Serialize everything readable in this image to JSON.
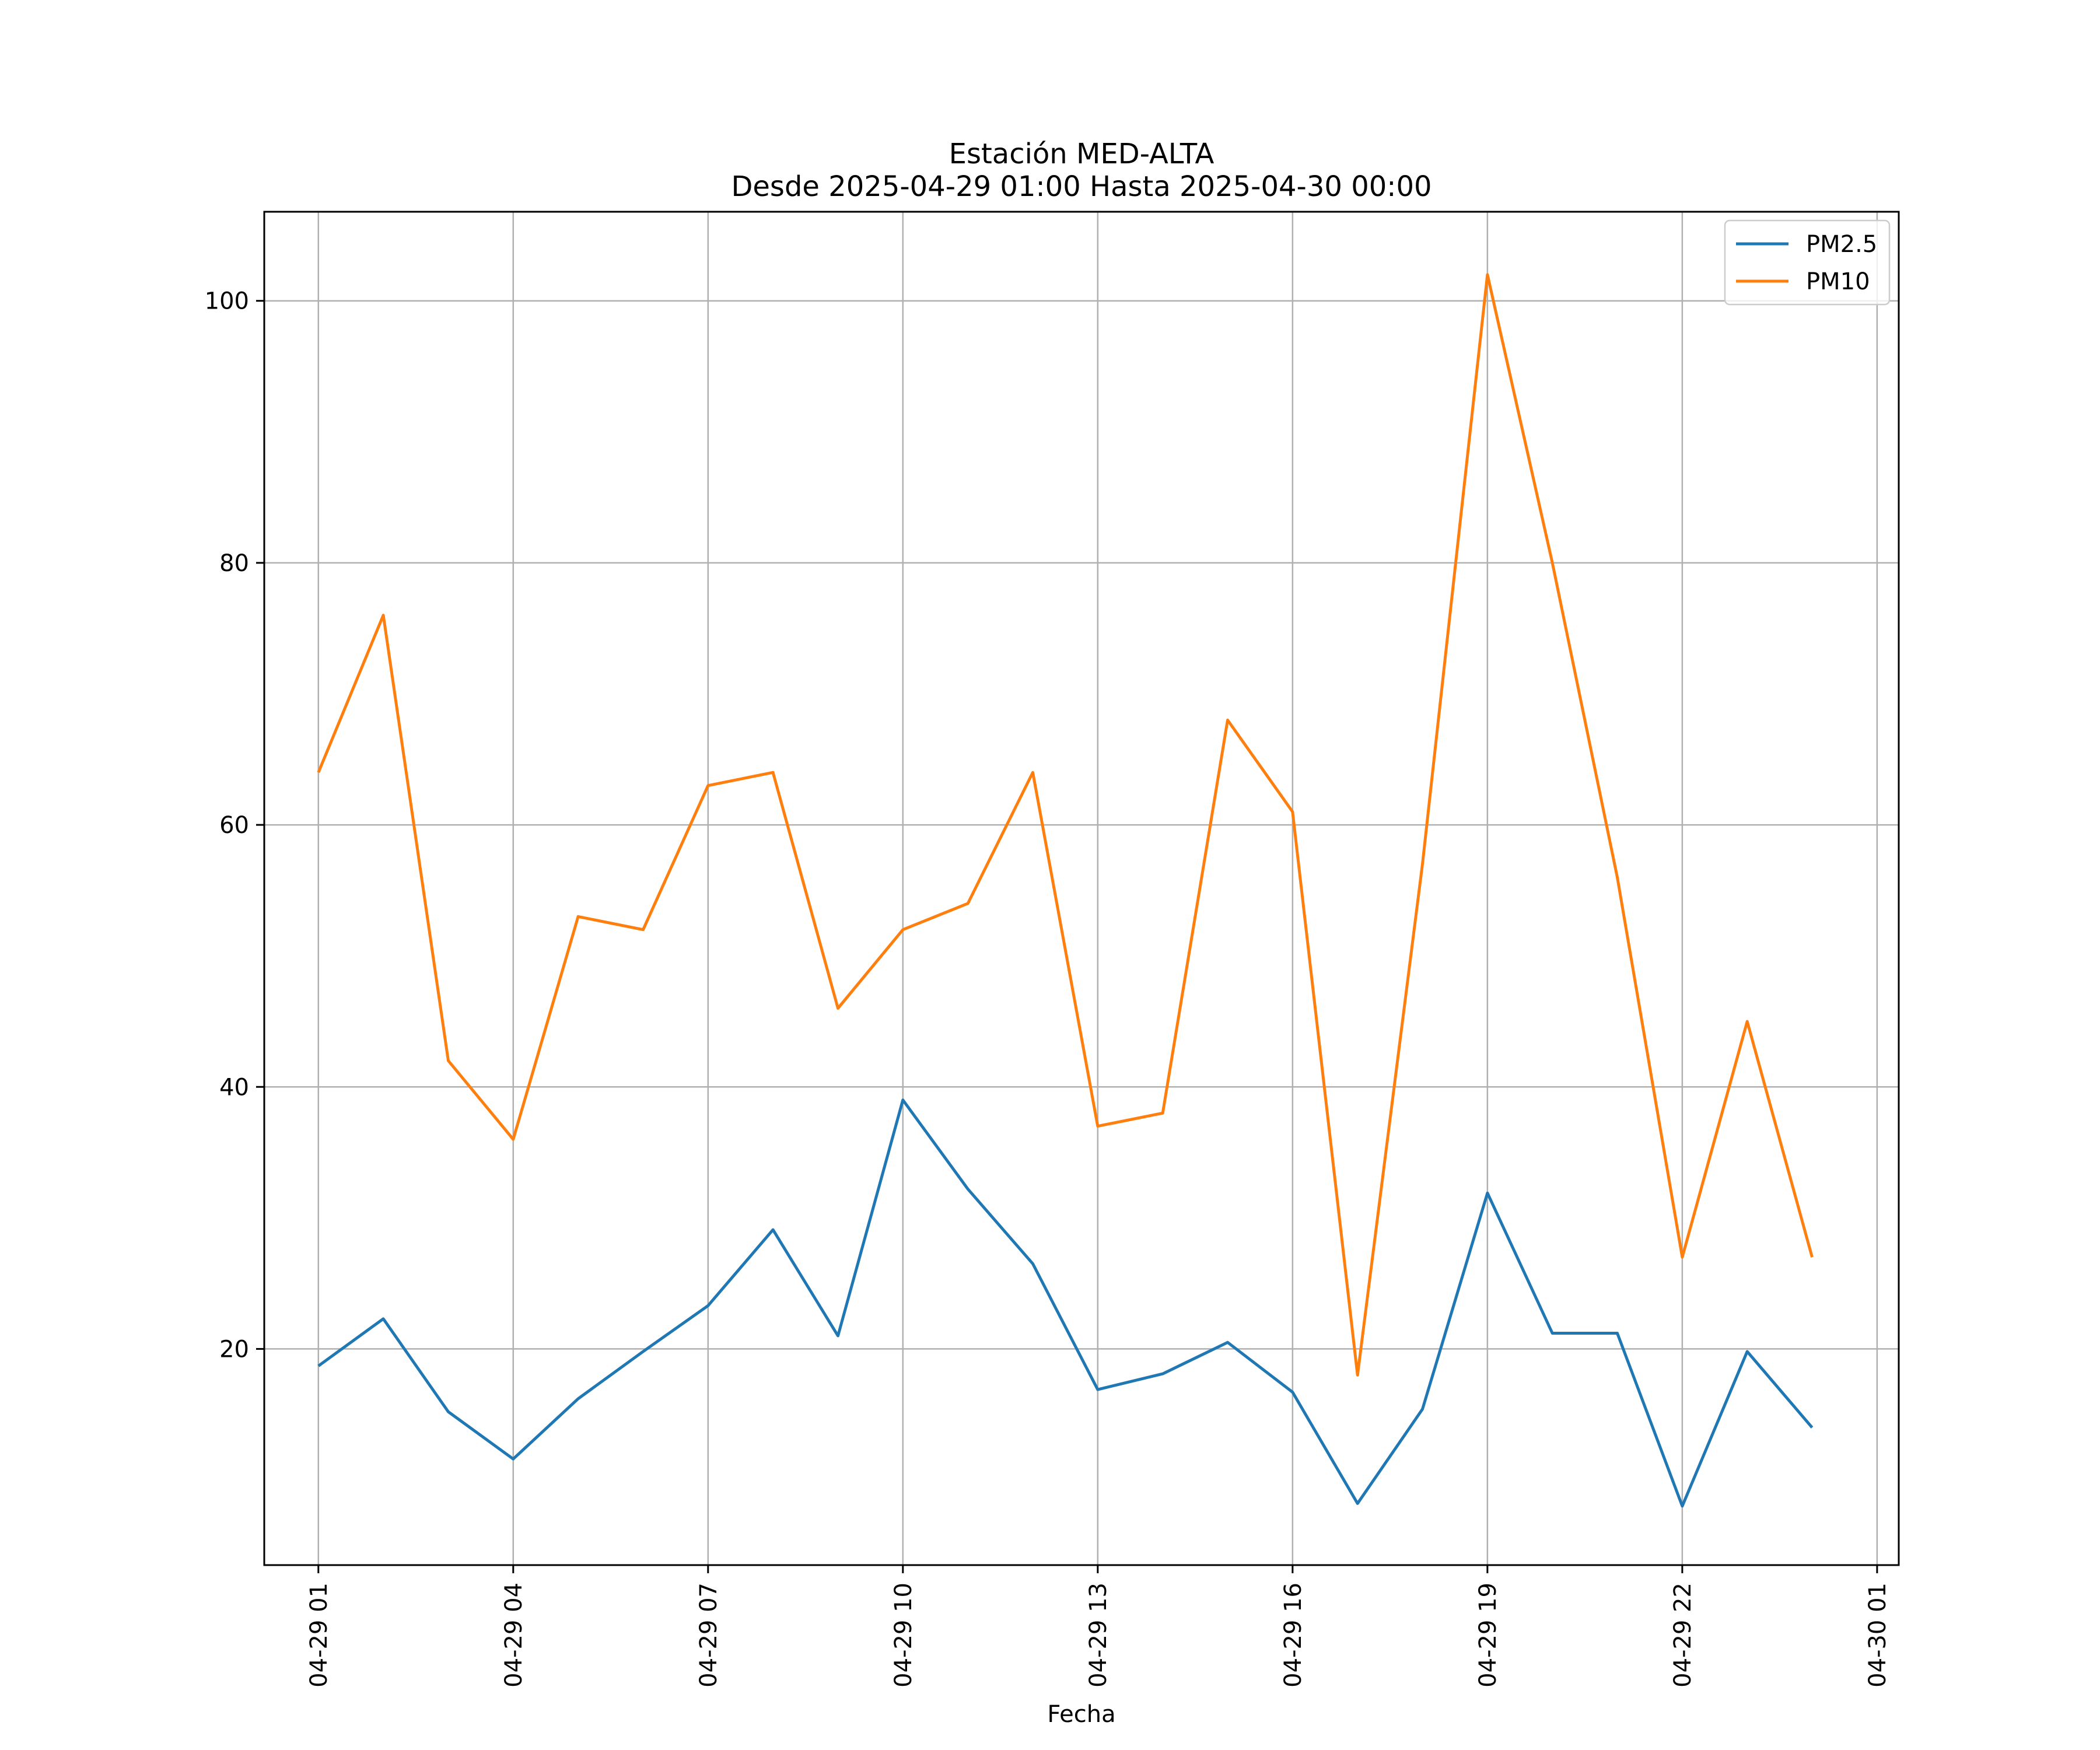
{
  "chart_data": {
    "type": "line",
    "title": "Estación MED-ALTA",
    "subtitle": "Desde 2025-04-29 01:00 Hasta 2025-04-30 00:00",
    "xlabel": "Fecha",
    "ylabel": "",
    "x": [
      "2025-04-29 01:00",
      "2025-04-29 02:00",
      "2025-04-29 03:00",
      "2025-04-29 04:00",
      "2025-04-29 05:00",
      "2025-04-29 06:00",
      "2025-04-29 07:00",
      "2025-04-29 08:00",
      "2025-04-29 09:00",
      "2025-04-29 10:00",
      "2025-04-29 11:00",
      "2025-04-29 12:00",
      "2025-04-29 13:00",
      "2025-04-29 14:00",
      "2025-04-29 15:00",
      "2025-04-29 16:00",
      "2025-04-29 17:00",
      "2025-04-29 18:00",
      "2025-04-29 19:00",
      "2025-04-29 20:00",
      "2025-04-29 21:00",
      "2025-04-29 22:00",
      "2025-04-29 23:00",
      "2025-04-30 00:00"
    ],
    "xlim": [
      "2025-04-29 00:10",
      "2025-04-30 01:20"
    ],
    "ylim": [
      3.5,
      106.8
    ],
    "x_ticks": [
      "2025-04-29 01:00",
      "2025-04-29 04:00",
      "2025-04-29 07:00",
      "2025-04-29 10:00",
      "2025-04-29 13:00",
      "2025-04-29 16:00",
      "2025-04-29 19:00",
      "2025-04-29 22:00",
      "2025-04-30 01:00"
    ],
    "x_tick_labels": [
      "04-29 01",
      "04-29 04",
      "04-29 07",
      "04-29 10",
      "04-29 13",
      "04-29 16",
      "04-29 19",
      "04-29 22",
      "04-30 01"
    ],
    "y_ticks": [
      20,
      40,
      60,
      80,
      100
    ],
    "y_tick_labels": [
      "20",
      "40",
      "60",
      "80",
      "100"
    ],
    "grid": true,
    "legend_position": "top-right",
    "series": [
      {
        "name": "PM2.5",
        "color": "#1f77b4",
        "values": [
          18.7,
          22.3,
          15.2,
          11.6,
          16.2,
          19.8,
          23.3,
          29.1,
          21.0,
          39.0,
          32.2,
          26.5,
          16.9,
          18.1,
          20.5,
          16.7,
          8.2,
          15.4,
          31.9,
          21.2,
          21.2,
          8.0,
          19.8,
          14.0
        ]
      },
      {
        "name": "PM10",
        "color": "#ff7f0e",
        "values": [
          64,
          76,
          42,
          36,
          53,
          52,
          63,
          64,
          46,
          52,
          54,
          64,
          37,
          38,
          68,
          61,
          18,
          57,
          102,
          80,
          56,
          27,
          45,
          27
        ]
      }
    ]
  }
}
